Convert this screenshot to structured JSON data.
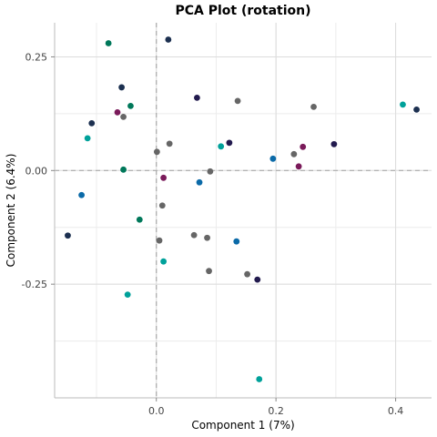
{
  "chart_data": {
    "type": "scatter",
    "title": "PCA Plot (rotation)",
    "xlabel": "Component 1 (7%)",
    "ylabel": "Component 2 (6.4%)",
    "xlim": [
      -0.17,
      0.46
    ],
    "ylim": [
      -0.5,
      0.325
    ],
    "x_ticks": [
      0.0,
      0.2,
      0.4
    ],
    "x_tick_labels": [
      "0.0",
      "0.2",
      "0.4"
    ],
    "y_ticks": [
      0.25,
      0.0,
      -0.25
    ],
    "y_tick_labels": [
      "0.25",
      "0.00",
      "-0.25"
    ],
    "grid": true,
    "reference_lines": {
      "x": 0,
      "y": 0
    },
    "colors": {
      "navy": "#1c3050",
      "teal": "#00a19a",
      "green": "#00785a",
      "gray": "#666666",
      "magenta": "#7a1a5a",
      "blue": "#0b6aa8",
      "purple": "#221a4e"
    },
    "points": [
      {
        "x": -0.08,
        "y": 0.28,
        "color": "green"
      },
      {
        "x": 0.02,
        "y": 0.288,
        "color": "navy"
      },
      {
        "x": -0.058,
        "y": 0.183,
        "color": "navy"
      },
      {
        "x": -0.108,
        "y": 0.104,
        "color": "navy"
      },
      {
        "x": -0.065,
        "y": 0.128,
        "color": "magenta"
      },
      {
        "x": -0.055,
        "y": 0.118,
        "color": "gray"
      },
      {
        "x": -0.043,
        "y": 0.142,
        "color": "green"
      },
      {
        "x": -0.115,
        "y": 0.071,
        "color": "teal"
      },
      {
        "x": 0.068,
        "y": 0.16,
        "color": "purple"
      },
      {
        "x": 0.136,
        "y": 0.153,
        "color": "gray"
      },
      {
        "x": 0.263,
        "y": 0.14,
        "color": "gray"
      },
      {
        "x": 0.412,
        "y": 0.145,
        "color": "teal"
      },
      {
        "x": 0.435,
        "y": 0.134,
        "color": "navy"
      },
      {
        "x": 0.022,
        "y": 0.059,
        "color": "gray"
      },
      {
        "x": 0.001,
        "y": 0.041,
        "color": "gray"
      },
      {
        "x": 0.108,
        "y": 0.053,
        "color": "teal"
      },
      {
        "x": 0.122,
        "y": 0.061,
        "color": "purple"
      },
      {
        "x": 0.245,
        "y": 0.052,
        "color": "magenta"
      },
      {
        "x": 0.297,
        "y": 0.058,
        "color": "purple"
      },
      {
        "x": 0.23,
        "y": 0.036,
        "color": "gray"
      },
      {
        "x": 0.195,
        "y": 0.026,
        "color": "blue"
      },
      {
        "x": 0.238,
        "y": 0.009,
        "color": "magenta"
      },
      {
        "x": -0.055,
        "y": 0.002,
        "color": "green"
      },
      {
        "x": 0.09,
        "y": -0.002,
        "color": "gray"
      },
      {
        "x": 0.012,
        "y": -0.016,
        "color": "magenta"
      },
      {
        "x": 0.072,
        "y": -0.026,
        "color": "blue"
      },
      {
        "x": -0.125,
        "y": -0.054,
        "color": "blue"
      },
      {
        "x": 0.01,
        "y": -0.077,
        "color": "gray"
      },
      {
        "x": -0.028,
        "y": -0.108,
        "color": "green"
      },
      {
        "x": -0.148,
        "y": -0.143,
        "color": "navy"
      },
      {
        "x": 0.063,
        "y": -0.142,
        "color": "gray"
      },
      {
        "x": 0.085,
        "y": -0.148,
        "color": "gray"
      },
      {
        "x": 0.005,
        "y": -0.154,
        "color": "gray"
      },
      {
        "x": 0.134,
        "y": -0.156,
        "color": "blue"
      },
      {
        "x": 0.012,
        "y": -0.2,
        "color": "teal"
      },
      {
        "x": 0.088,
        "y": -0.221,
        "color": "gray"
      },
      {
        "x": 0.152,
        "y": -0.228,
        "color": "gray"
      },
      {
        "x": 0.169,
        "y": -0.24,
        "color": "purple"
      },
      {
        "x": -0.048,
        "y": -0.273,
        "color": "teal"
      },
      {
        "x": 0.172,
        "y": -0.459,
        "color": "teal"
      }
    ]
  }
}
